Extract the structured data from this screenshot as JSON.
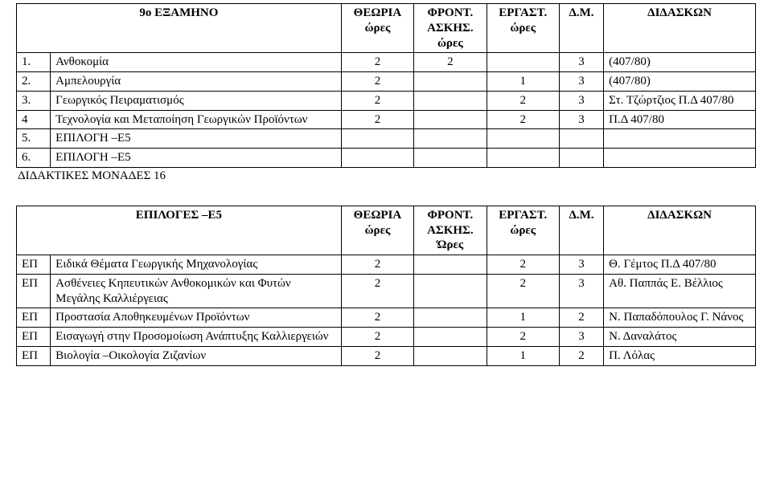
{
  "table1": {
    "headers": {
      "semester": "9ο ΕΞΑΜΗΝΟ",
      "theory": "ΘΕΩΡΙΑ ώρες",
      "front": "ΦΡΟΝΤ. ΑΣΚΗΣ. ώρες",
      "lab": "ΕΡΓΑΣΤ. ώρες",
      "dm": "Δ.Μ.",
      "instr": "ΔΙΔΑΣΚΩΝ"
    },
    "rows": [
      {
        "idx": "1.",
        "subj": "Ανθοκομία",
        "theo": "2",
        "front": "2",
        "lab": "",
        "dm": "3",
        "instr": "(407/80)"
      },
      {
        "idx": "2.",
        "subj": "Αμπελουργία",
        "theo": "2",
        "front": "",
        "lab": "1",
        "dm": "3",
        "instr": "(407/80)"
      },
      {
        "idx": "3.",
        "subj": "Γεωργικός Πειραματισμός",
        "theo": "2",
        "front": "",
        "lab": "2",
        "dm": "3",
        "instr": "Στ. Τζώρτζιος Π.Δ 407/80"
      },
      {
        "idx": "4",
        "subj": "Τεχνολογία και Μεταποίηση Γεωργικών Προϊόντων",
        "theo": "2",
        "front": "",
        "lab": "2",
        "dm": "3",
        "instr": "Π.Δ 407/80"
      },
      {
        "idx": "5.",
        "subj": "ΕΠΙΛΟΓΗ –Ε5",
        "theo": "",
        "front": "",
        "lab": "",
        "dm": "",
        "instr": ""
      },
      {
        "idx": "6.",
        "subj": "ΕΠΙΛΟΓΗ –Ε5",
        "theo": "",
        "front": "",
        "lab": "",
        "dm": "",
        "instr": ""
      }
    ],
    "footer": "ΔΙΔΑΚΤΙΚΕΣ ΜΟΝΑΔΕΣ 16"
  },
  "table2": {
    "headers": {
      "options": "ΕΠΙΛΟΓΕΣ –Ε5",
      "theory": "ΘΕΩΡΙΑ ώρες",
      "front": "ΦΡΟΝΤ. ΑΣΚΗΣ. Ώρες",
      "lab": "ΕΡΓΑΣΤ. ώρες",
      "dm": "Δ.Μ.",
      "instr": "ΔΙΔΑΣΚΩΝ"
    },
    "rows": [
      {
        "idx": "ΕΠ",
        "subj": "Ειδικά Θέματα Γεωργικής Μηχανολογίας",
        "theo": "2",
        "front": "",
        "lab": "2",
        "dm": "3",
        "instr": "Θ. Γέμτος Π.Δ 407/80"
      },
      {
        "idx": "ΕΠ",
        "subj": "Ασθένειες Κηπευτικών Ανθοκομικών και Φυτών Μεγάλης Καλλιέργειας",
        "theo": "2",
        "front": "",
        "lab": "2",
        "dm": "3",
        "instr": "Αθ. Παππάς  Ε. Βέλλιος"
      },
      {
        "idx": "ΕΠ",
        "subj": "Προστασία Αποθηκευμένων Προϊόντων",
        "theo": "2",
        "front": "",
        "lab": "1",
        "dm": "2",
        "instr": "Ν. Παπαδόπουλος Γ. Νάνος"
      },
      {
        "idx": "ΕΠ",
        "subj": "Εισαγωγή στην Προσομοίωση Ανάπτυξης Καλλιεργειών",
        "theo": "2",
        "front": "",
        "lab": "2",
        "dm": "3",
        "instr": "Ν. Δαναλάτος"
      },
      {
        "idx": "ΕΠ",
        "subj": "Βιολογία –Οικολογία Ζιζανίων",
        "theo": "2",
        "front": "",
        "lab": "1",
        "dm": "2",
        "instr": "Π. Λόλας"
      }
    ]
  }
}
